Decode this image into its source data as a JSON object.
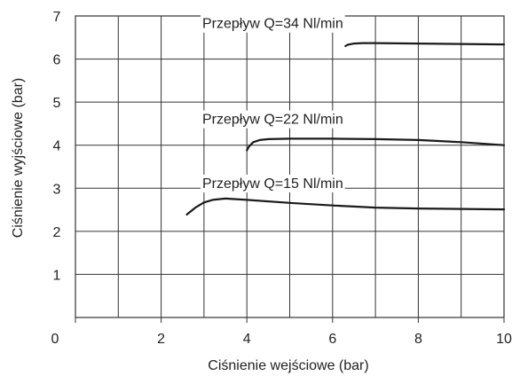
{
  "chart_data": {
    "type": "line",
    "title": "",
    "xlabel": "Ciśnienie wejściowe (bar)",
    "ylabel": "Ciśnienie wyjściowe (bar)",
    "xlim": [
      0,
      10
    ],
    "ylim": [
      0,
      7
    ],
    "x_ticks": [
      0,
      2,
      4,
      6,
      8,
      10
    ],
    "y_ticks": [
      1,
      2,
      3,
      4,
      5,
      6,
      7
    ],
    "grid": true,
    "colors": {
      "line": "#1a1a1a",
      "grid": "#333333"
    },
    "series": [
      {
        "name": "Przepływ Q=34 Nl/min",
        "x": [
          6.3,
          6.35,
          6.5,
          6.7,
          7,
          8,
          9,
          10
        ],
        "y": [
          6.3,
          6.33,
          6.36,
          6.37,
          6.37,
          6.36,
          6.35,
          6.34
        ]
      },
      {
        "name": "Przepływ Q=22 Nl/min",
        "x": [
          4.0,
          4.05,
          4.15,
          4.3,
          4.5,
          5,
          6,
          7,
          8,
          9,
          10
        ],
        "y": [
          3.88,
          3.97,
          4.07,
          4.12,
          4.14,
          4.15,
          4.15,
          4.14,
          4.12,
          4.07,
          4.0
        ]
      },
      {
        "name": "Przepływ Q=15 Nl/min",
        "x": [
          2.6,
          2.8,
          3.0,
          3.2,
          3.5,
          4,
          5,
          6,
          7,
          8,
          9,
          10
        ],
        "y": [
          2.39,
          2.55,
          2.67,
          2.73,
          2.76,
          2.73,
          2.66,
          2.6,
          2.55,
          2.53,
          2.52,
          2.51
        ]
      }
    ]
  }
}
